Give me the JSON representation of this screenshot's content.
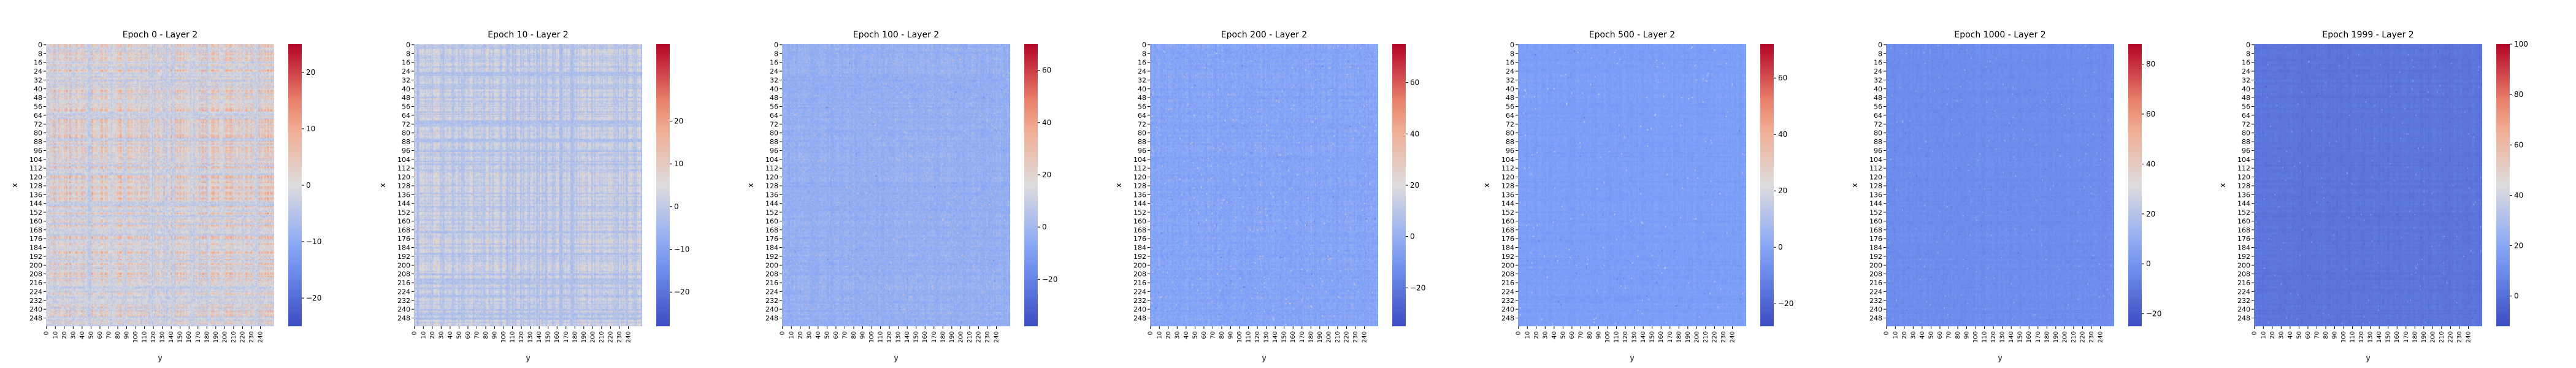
{
  "colormap": "coolwarm",
  "colors": {
    "cold": "#3b4cc0",
    "neutral": "#dddcdc",
    "hot": "#b40426"
  },
  "chart_data": [
    {
      "type": "heatmap",
      "title": "Epoch 0 - Layer 2",
      "xlabel": "y",
      "ylabel": "x",
      "y_ticks": [
        "0",
        "8",
        "16",
        "24",
        "32",
        "40",
        "48",
        "56",
        "64",
        "72",
        "80",
        "88",
        "96",
        "104",
        "112",
        "120",
        "128",
        "136",
        "144",
        "152",
        "160",
        "168",
        "176",
        "184",
        "192",
        "200",
        "208",
        "216",
        "224",
        "232",
        "240",
        "248"
      ],
      "x_ticks": [
        "0",
        "10",
        "20",
        "30",
        "40",
        "50",
        "60",
        "70",
        "80",
        "90",
        "100",
        "110",
        "120",
        "130",
        "140",
        "150",
        "160",
        "170",
        "180",
        "190",
        "200",
        "210",
        "220",
        "230",
        "240"
      ],
      "colorbar": {
        "range": [
          -25,
          25
        ],
        "ticks": [
          -20,
          -10,
          0,
          10,
          20
        ]
      },
      "texture": {
        "mean": 0,
        "stripe_amp": 8,
        "noise_amp": 3,
        "hot_frac": 0.0,
        "hot_amp": 0
      }
    },
    {
      "type": "heatmap",
      "title": "Epoch 10 - Layer 2",
      "xlabel": "y",
      "ylabel": "x",
      "y_ticks": [
        "0",
        "8",
        "16",
        "24",
        "32",
        "40",
        "48",
        "56",
        "64",
        "72",
        "80",
        "88",
        "96",
        "104",
        "112",
        "120",
        "128",
        "136",
        "144",
        "152",
        "160",
        "168",
        "176",
        "184",
        "192",
        "200",
        "208",
        "216",
        "224",
        "232",
        "240",
        "248"
      ],
      "x_ticks": [
        "0",
        "10",
        "20",
        "30",
        "40",
        "50",
        "60",
        "70",
        "80",
        "90",
        "100",
        "110",
        "120",
        "130",
        "140",
        "150",
        "160",
        "170",
        "180",
        "190",
        "200",
        "210",
        "220",
        "230",
        "240"
      ],
      "colorbar": {
        "range": [
          -28,
          38
        ],
        "ticks": [
          -20,
          -10,
          0,
          10,
          20
        ]
      },
      "texture": {
        "mean": 0,
        "stripe_amp": 7,
        "noise_amp": 3,
        "hot_frac": 0.0,
        "hot_amp": 0
      }
    },
    {
      "type": "heatmap",
      "title": "Epoch 100 - Layer 2",
      "xlabel": "y",
      "ylabel": "x",
      "y_ticks": [
        "0",
        "8",
        "16",
        "24",
        "32",
        "40",
        "48",
        "56",
        "64",
        "72",
        "80",
        "88",
        "96",
        "104",
        "112",
        "120",
        "128",
        "136",
        "144",
        "152",
        "160",
        "168",
        "176",
        "184",
        "192",
        "200",
        "208",
        "216",
        "224",
        "232",
        "240",
        "248"
      ],
      "x_ticks": [
        "0",
        "10",
        "20",
        "30",
        "40",
        "50",
        "60",
        "70",
        "80",
        "90",
        "100",
        "110",
        "120",
        "130",
        "140",
        "150",
        "160",
        "170",
        "180",
        "190",
        "200",
        "210",
        "220",
        "230",
        "240"
      ],
      "colorbar": {
        "range": [
          -38,
          70
        ],
        "ticks": [
          -20,
          0,
          20,
          40,
          60
        ]
      },
      "texture": {
        "mean": -4,
        "stripe_amp": 3,
        "noise_amp": 4,
        "hot_frac": 0.004,
        "hot_amp": 30
      }
    },
    {
      "type": "heatmap",
      "title": "Epoch 200 - Layer 2",
      "xlabel": "y",
      "ylabel": "x",
      "y_ticks": [
        "0",
        "8",
        "16",
        "24",
        "32",
        "40",
        "48",
        "56",
        "64",
        "72",
        "80",
        "88",
        "96",
        "104",
        "112",
        "120",
        "128",
        "136",
        "144",
        "152",
        "160",
        "168",
        "176",
        "184",
        "192",
        "200",
        "208",
        "216",
        "224",
        "232",
        "240",
        "248"
      ],
      "x_ticks": [
        "0",
        "10",
        "20",
        "30",
        "40",
        "50",
        "60",
        "70",
        "80",
        "90",
        "100",
        "110",
        "120",
        "130",
        "140",
        "150",
        "160",
        "170",
        "180",
        "190",
        "200",
        "210",
        "220",
        "230",
        "240"
      ],
      "colorbar": {
        "range": [
          -35,
          75
        ],
        "ticks": [
          -20,
          0,
          20,
          40,
          60
        ]
      },
      "texture": {
        "mean": -5,
        "stripe_amp": 3,
        "noise_amp": 4,
        "hot_frac": 0.004,
        "hot_amp": 30
      }
    },
    {
      "type": "heatmap",
      "title": "Epoch 500 - Layer 2",
      "xlabel": "y",
      "ylabel": "x",
      "y_ticks": [
        "0",
        "8",
        "16",
        "24",
        "32",
        "40",
        "48",
        "56",
        "64",
        "72",
        "80",
        "88",
        "96",
        "104",
        "112",
        "120",
        "128",
        "136",
        "144",
        "152",
        "160",
        "168",
        "176",
        "184",
        "192",
        "200",
        "208",
        "216",
        "224",
        "232",
        "240",
        "248"
      ],
      "x_ticks": [
        "0",
        "10",
        "20",
        "30",
        "40",
        "50",
        "60",
        "70",
        "80",
        "90",
        "100",
        "110",
        "120",
        "130",
        "140",
        "150",
        "160",
        "170",
        "180",
        "190",
        "200",
        "210",
        "220",
        "230",
        "240"
      ],
      "colorbar": {
        "range": [
          -28,
          72
        ],
        "ticks": [
          -20,
          0,
          20,
          40,
          60
        ]
      },
      "texture": {
        "mean": -3,
        "stripe_amp": 2,
        "noise_amp": 2,
        "hot_frac": 0.003,
        "hot_amp": 25
      }
    },
    {
      "type": "heatmap",
      "title": "Epoch 1000 - Layer 2",
      "xlabel": "y",
      "ylabel": "x",
      "y_ticks": [
        "0",
        "8",
        "16",
        "24",
        "32",
        "40",
        "48",
        "56",
        "64",
        "72",
        "80",
        "88",
        "96",
        "104",
        "112",
        "120",
        "128",
        "136",
        "144",
        "152",
        "160",
        "168",
        "176",
        "184",
        "192",
        "200",
        "208",
        "216",
        "224",
        "232",
        "240",
        "248"
      ],
      "x_ticks": [
        "0",
        "10",
        "20",
        "30",
        "40",
        "50",
        "60",
        "70",
        "80",
        "90",
        "100",
        "110",
        "120",
        "130",
        "140",
        "150",
        "160",
        "170",
        "180",
        "190",
        "200",
        "210",
        "220",
        "230",
        "240"
      ],
      "colorbar": {
        "range": [
          -25,
          88
        ],
        "ticks": [
          -20,
          0,
          20,
          40,
          60,
          80
        ]
      },
      "texture": {
        "mean": -3,
        "stripe_amp": 2,
        "noise_amp": 2,
        "hot_frac": 0.003,
        "hot_amp": 20
      }
    },
    {
      "type": "heatmap",
      "title": "Epoch 1999 - Layer 2",
      "xlabel": "y",
      "ylabel": "x",
      "y_ticks": [
        "0",
        "8",
        "16",
        "24",
        "32",
        "40",
        "48",
        "56",
        "64",
        "72",
        "80",
        "88",
        "96",
        "104",
        "112",
        "120",
        "128",
        "136",
        "144",
        "152",
        "160",
        "168",
        "176",
        "184",
        "192",
        "200",
        "208",
        "216",
        "224",
        "232",
        "240",
        "248"
      ],
      "x_ticks": [
        "0",
        "10",
        "20",
        "30",
        "40",
        "50",
        "60",
        "70",
        "80",
        "90",
        "100",
        "110",
        "120",
        "130",
        "140",
        "150",
        "160",
        "170",
        "180",
        "190",
        "200",
        "210",
        "220",
        "230",
        "240"
      ],
      "colorbar": {
        "range": [
          -12,
          100
        ],
        "ticks": [
          0,
          20,
          40,
          60,
          80,
          100
        ]
      },
      "texture": {
        "mean": 2,
        "stripe_amp": 2,
        "noise_amp": 1.5,
        "hot_frac": 0.003,
        "hot_amp": 20
      }
    }
  ]
}
